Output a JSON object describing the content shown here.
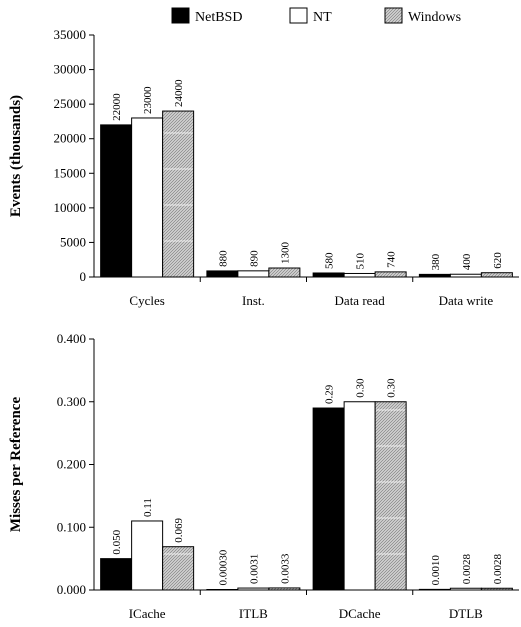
{
  "legend": [
    {
      "name": "NetBSD",
      "style": "solid",
      "color": "#000000"
    },
    {
      "name": "NT",
      "style": "empty",
      "color": "#ffffff"
    },
    {
      "name": "Windows",
      "style": "hatched",
      "color": "#bdbdbd"
    }
  ],
  "chart_data": [
    {
      "type": "bar",
      "ylabel": "Events (thousands)",
      "ylim": [
        0,
        35000
      ],
      "yticks": [
        "0",
        "5000",
        "10000",
        "15000",
        "20000",
        "25000",
        "30000",
        "35000"
      ],
      "categories": [
        "Cycles",
        "Inst.",
        "Data read",
        "Data write"
      ],
      "series": [
        {
          "name": "NetBSD",
          "values": [
            22000,
            880,
            580,
            380
          ],
          "labels": [
            "22000",
            "880",
            "580",
            "380"
          ]
        },
        {
          "name": "NT",
          "values": [
            23000,
            890,
            510,
            400
          ],
          "labels": [
            "23000",
            "890",
            "510",
            "400"
          ]
        },
        {
          "name": "Windows",
          "values": [
            24000,
            1300,
            740,
            620
          ],
          "labels": [
            "24000",
            "1300",
            "740",
            "620"
          ]
        }
      ]
    },
    {
      "type": "bar",
      "ylabel": "Misses per Reference",
      "ylim": [
        0,
        0.4
      ],
      "yticks": [
        "0.000",
        "0.100",
        "0.200",
        "0.300",
        "0.400"
      ],
      "categories": [
        "ICache",
        "ITLB",
        "DCache",
        "DTLB"
      ],
      "series": [
        {
          "name": "NetBSD",
          "values": [
            0.05,
            0.0003,
            0.29,
            0.001
          ],
          "labels": [
            "0.050",
            "0.00030",
            "0.29",
            "0.0010"
          ]
        },
        {
          "name": "NT",
          "values": [
            0.11,
            0.0031,
            0.3,
            0.0028
          ],
          "labels": [
            "0.11",
            "0.0031",
            "0.30",
            "0.0028"
          ]
        },
        {
          "name": "Windows",
          "values": [
            0.069,
            0.0033,
            0.3,
            0.0028
          ],
          "labels": [
            "0.069",
            "0.0033",
            "0.30",
            "0.0028"
          ]
        }
      ]
    }
  ]
}
